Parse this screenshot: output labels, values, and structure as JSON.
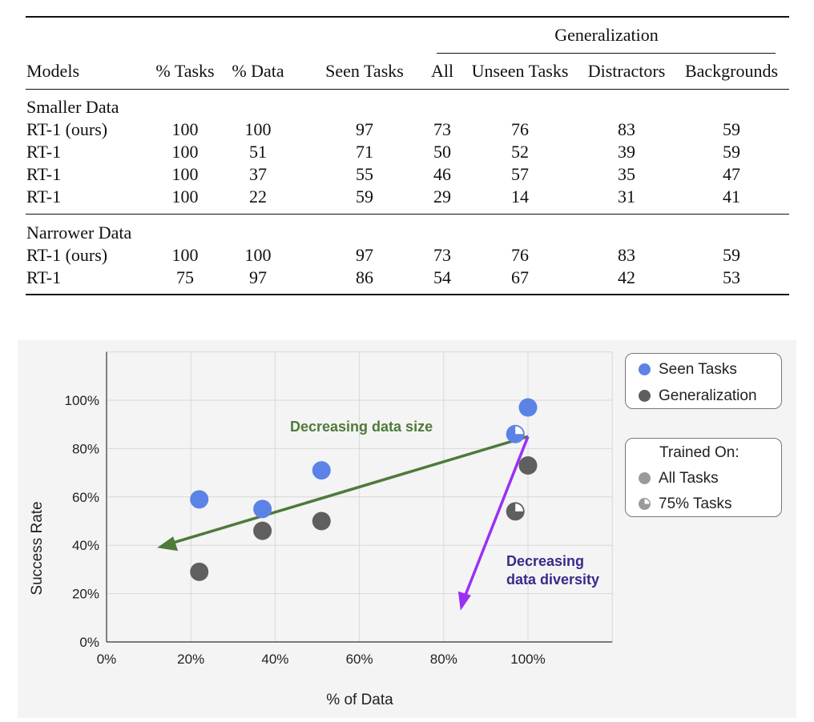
{
  "table": {
    "group_header": "Generalization",
    "columns": [
      "Models",
      "% Tasks",
      "% Data",
      "Seen Tasks",
      "All",
      "Unseen Tasks",
      "Distractors",
      "Backgrounds"
    ],
    "sections": [
      {
        "title": "Smaller Data",
        "rows": [
          [
            "RT-1 (ours)",
            "100",
            "100",
            "97",
            "73",
            "76",
            "83",
            "59"
          ],
          [
            "RT-1",
            "100",
            "51",
            "71",
            "50",
            "52",
            "39",
            "59"
          ],
          [
            "RT-1",
            "100",
            "37",
            "55",
            "46",
            "57",
            "35",
            "47"
          ],
          [
            "RT-1",
            "100",
            "22",
            "59",
            "29",
            "14",
            "31",
            "41"
          ]
        ]
      },
      {
        "title": "Narrower Data",
        "rows": [
          [
            "RT-1 (ours)",
            "100",
            "100",
            "97",
            "73",
            "76",
            "83",
            "59"
          ],
          [
            "RT-1",
            "75",
            "97",
            "86",
            "54",
            "67",
            "42",
            "53"
          ]
        ]
      }
    ]
  },
  "chart_data": {
    "type": "scatter",
    "xlabel": "% of Data",
    "ylabel": "Success Rate",
    "xlim": [
      0,
      120
    ],
    "ylim": [
      0,
      120
    ],
    "x_ticks": [
      "0%",
      "20%",
      "40%",
      "60%",
      "80%",
      "100%"
    ],
    "y_ticks": [
      "0%",
      "20%",
      "40%",
      "60%",
      "80%",
      "100%"
    ],
    "grid": true,
    "series": [
      {
        "name": "Seen Tasks",
        "color": "#5b82e6",
        "points": [
          {
            "x": 22,
            "y": 59,
            "trained_on": "all"
          },
          {
            "x": 37,
            "y": 55,
            "trained_on": "all"
          },
          {
            "x": 51,
            "y": 71,
            "trained_on": "all"
          },
          {
            "x": 100,
            "y": 97,
            "trained_on": "all"
          },
          {
            "x": 97,
            "y": 86,
            "trained_on": "75%"
          }
        ]
      },
      {
        "name": "Generalization",
        "color": "#5f5f5f",
        "points": [
          {
            "x": 22,
            "y": 29,
            "trained_on": "all"
          },
          {
            "x": 37,
            "y": 46,
            "trained_on": "all"
          },
          {
            "x": 51,
            "y": 50,
            "trained_on": "all"
          },
          {
            "x": 100,
            "y": 73,
            "trained_on": "all"
          },
          {
            "x": 97,
            "y": 54,
            "trained_on": "75%"
          }
        ]
      }
    ],
    "annotations": [
      {
        "text": "Decreasing data size",
        "color": "#4e7a3a",
        "from": [
          100,
          85
        ],
        "to": [
          12,
          39
        ]
      },
      {
        "text_lines": [
          "Decreasing",
          "data diversity"
        ],
        "color": "#9b30f5",
        "text_color": "#3a2a8a",
        "from": [
          100,
          85
        ],
        "to": [
          84,
          13
        ]
      }
    ],
    "legend": {
      "placement": "right",
      "series_items": [
        "Seen Tasks",
        "Generalization"
      ],
      "trained_title": "Trained On:",
      "trained_items": [
        "All Tasks",
        "75% Tasks"
      ]
    }
  }
}
